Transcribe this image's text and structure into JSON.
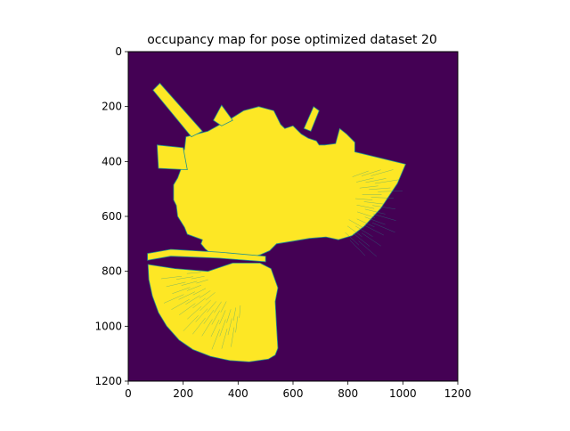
{
  "chart_data": {
    "type": "heatmap",
    "title": "occupancy map for pose optimized dataset 20",
    "xlabel": "",
    "ylabel": "",
    "xlim": [
      0,
      1200
    ],
    "ylim": [
      1200,
      0
    ],
    "x_ticks": [
      0,
      200,
      400,
      600,
      800,
      1000,
      1200
    ],
    "y_ticks": [
      0,
      200,
      400,
      600,
      800,
      1000,
      1200
    ],
    "x_tick_labels": [
      "0",
      "200",
      "400",
      "600",
      "800",
      "1000",
      "1200"
    ],
    "y_tick_labels": [
      "0",
      "200",
      "400",
      "600",
      "800",
      "1000",
      "1200"
    ],
    "colormap": "viridis",
    "colors": {
      "background": "#440154",
      "occupied": "#fde725",
      "edge": "#21918c"
    },
    "values": [
      0,
      1
    ],
    "grid": false,
    "occupied_regions": [
      {
        "name": "main-region",
        "outline": [
          [
            210,
            310
          ],
          [
            290,
            290
          ],
          [
            380,
            240
          ],
          [
            420,
            215
          ],
          [
            475,
            200
          ],
          [
            530,
            215
          ],
          [
            555,
            265
          ],
          [
            570,
            280
          ],
          [
            600,
            270
          ],
          [
            630,
            300
          ],
          [
            655,
            315
          ],
          [
            685,
            325
          ],
          [
            695,
            340
          ],
          [
            715,
            340
          ],
          [
            755,
            335
          ],
          [
            770,
            280
          ],
          [
            795,
            300
          ],
          [
            825,
            330
          ],
          [
            825,
            365
          ],
          [
            1010,
            410
          ],
          [
            980,
            480
          ],
          [
            920,
            570
          ],
          [
            860,
            635
          ],
          [
            815,
            670
          ],
          [
            765,
            685
          ],
          [
            720,
            675
          ],
          [
            660,
            680
          ],
          [
            600,
            690
          ],
          [
            540,
            700
          ],
          [
            515,
            725
          ],
          [
            480,
            740
          ],
          [
            440,
            750
          ],
          [
            390,
            752
          ],
          [
            330,
            748
          ],
          [
            300,
            735
          ],
          [
            280,
            718
          ],
          [
            265,
            700
          ],
          [
            270,
            685
          ],
          [
            215,
            665
          ],
          [
            205,
            640
          ],
          [
            180,
            600
          ],
          [
            175,
            560
          ],
          [
            165,
            540
          ],
          [
            165,
            485
          ],
          [
            180,
            460
          ],
          [
            195,
            420
          ],
          [
            190,
            380
          ],
          [
            205,
            355
          ]
        ]
      },
      {
        "name": "upper-left-spike",
        "outline": [
          [
            90,
            140
          ],
          [
            115,
            115
          ],
          [
            270,
            290
          ],
          [
            230,
            310
          ]
        ]
      },
      {
        "name": "upper-wedge",
        "outline": [
          [
            310,
            250
          ],
          [
            340,
            195
          ],
          [
            380,
            250
          ],
          [
            340,
            270
          ]
        ]
      },
      {
        "name": "upper-right-spike",
        "outline": [
          [
            640,
            280
          ],
          [
            675,
            200
          ],
          [
            695,
            215
          ],
          [
            665,
            290
          ]
        ]
      },
      {
        "name": "left-notch",
        "outline": [
          [
            105,
            340
          ],
          [
            200,
            350
          ],
          [
            215,
            430
          ],
          [
            110,
            425
          ]
        ]
      },
      {
        "name": "left-band",
        "outline": [
          [
            70,
            735
          ],
          [
            155,
            720
          ],
          [
            330,
            730
          ],
          [
            500,
            745
          ],
          [
            500,
            765
          ],
          [
            330,
            752
          ],
          [
            155,
            745
          ],
          [
            70,
            760
          ]
        ]
      },
      {
        "name": "lower-fan",
        "outline": [
          [
            72,
            775
          ],
          [
            170,
            790
          ],
          [
            290,
            800
          ],
          [
            380,
            770
          ],
          [
            480,
            770
          ],
          [
            520,
            790
          ],
          [
            545,
            860
          ],
          [
            535,
            910
          ],
          [
            540,
            1000
          ],
          [
            545,
            1080
          ],
          [
            535,
            1105
          ],
          [
            510,
            1120
          ],
          [
            440,
            1130
          ],
          [
            370,
            1125
          ],
          [
            300,
            1110
          ],
          [
            235,
            1085
          ],
          [
            185,
            1050
          ],
          [
            140,
            1000
          ],
          [
            110,
            950
          ],
          [
            88,
            890
          ],
          [
            75,
            830
          ]
        ]
      }
    ]
  }
}
